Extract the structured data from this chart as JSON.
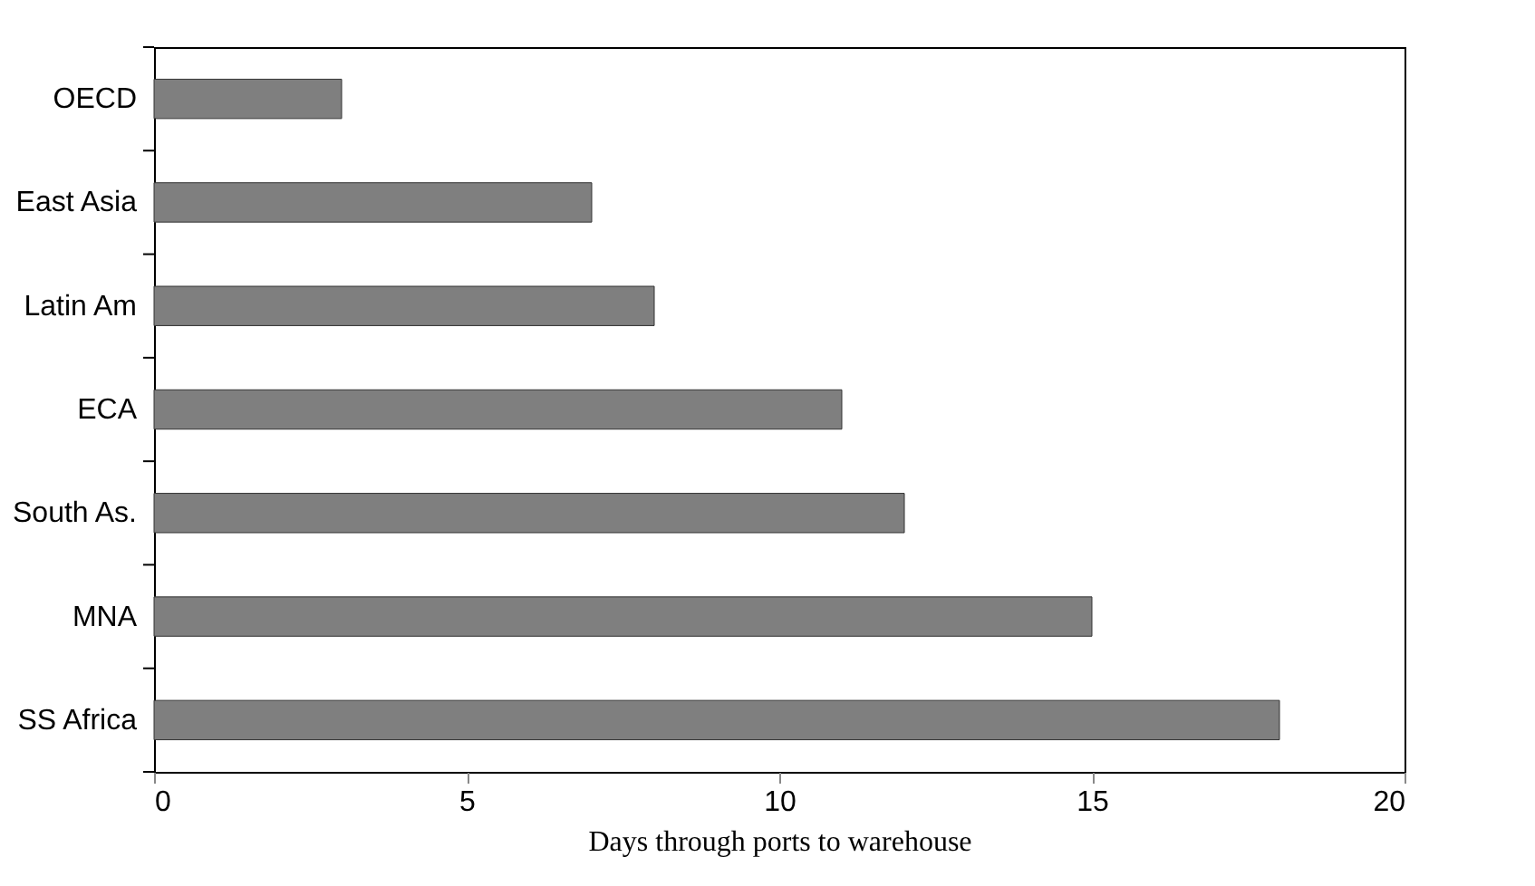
{
  "chart_data": {
    "type": "bar",
    "orientation": "horizontal",
    "xlabel": "Days through ports to warehouse",
    "categories": [
      "OECD",
      "East Asia",
      "Latin Am",
      "ECA",
      "South As.",
      "MNA",
      "SS Africa"
    ],
    "values": [
      3,
      7,
      8,
      11,
      12,
      15,
      18
    ],
    "color": "#7f7f7f",
    "xlim": [
      0,
      20
    ],
    "xticks": [
      0,
      5,
      10,
      15,
      20
    ],
    "grid": false
  }
}
